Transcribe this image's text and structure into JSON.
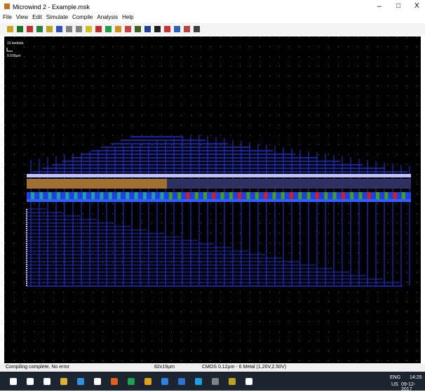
{
  "window": {
    "title": "Microwind 2 - Example.msk"
  },
  "menu": [
    "File",
    "View",
    "Edit",
    "Simulate",
    "Compile",
    "Analysis",
    "Help"
  ],
  "canvas": {
    "scale_label": "10 lambda",
    "scale_value": "0.500µm"
  },
  "status_bar": [
    "Compiling complete, No error",
    "82x19µm",
    "CMOS 0.12µm - 6 Metal (1.20V,2.50V)"
  ],
  "taskbar": {
    "language": "ENG",
    "region": "US",
    "time": "14:25",
    "date": "09-12-2017"
  }
}
